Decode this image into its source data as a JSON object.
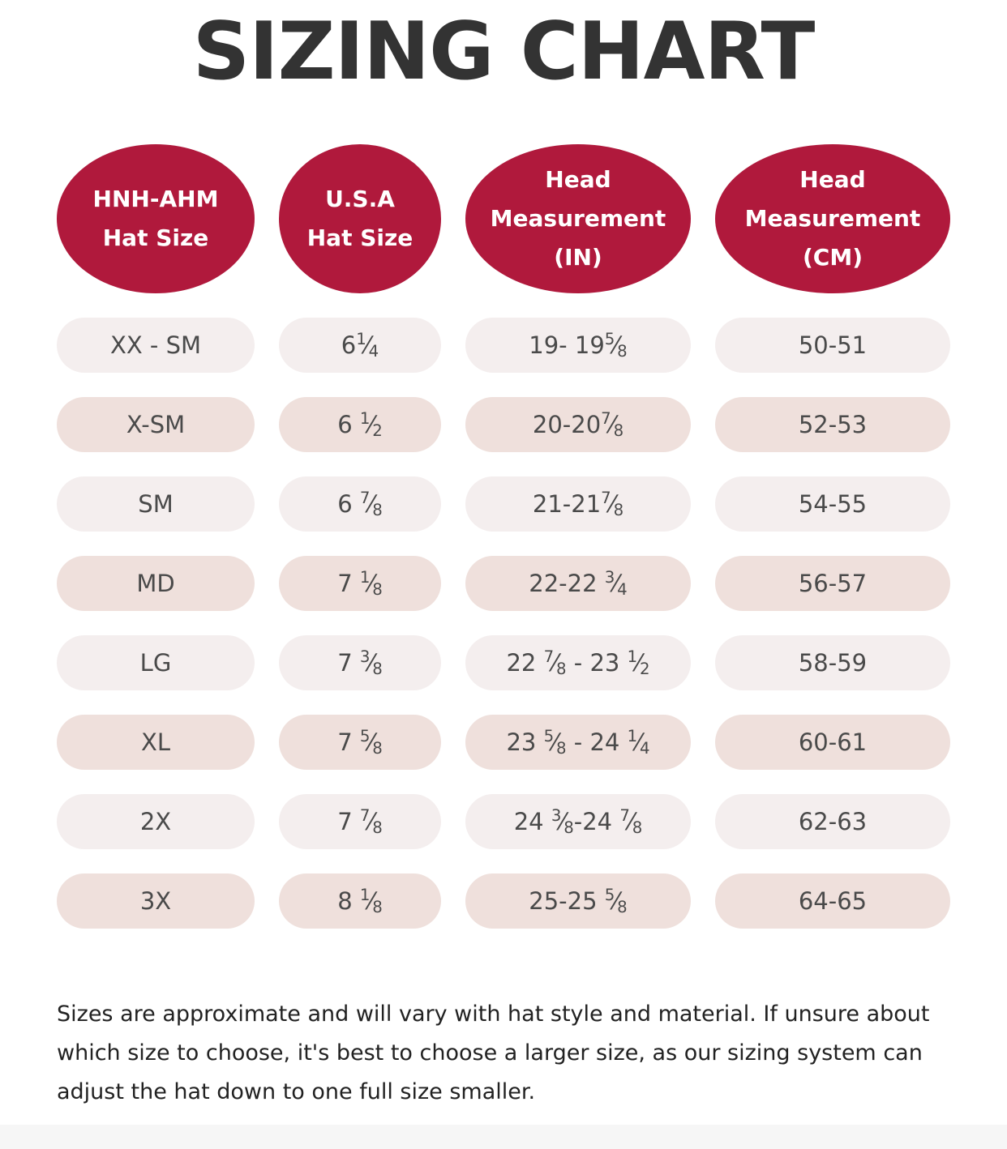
{
  "title": "SIZING CHART",
  "headers": [
    {
      "lines": [
        "HNH-AHM",
        "Hat Size"
      ]
    },
    {
      "lines": [
        "U.S.A",
        "Hat Size"
      ]
    },
    {
      "lines": [
        "Head",
        "Measurement",
        "(IN)"
      ]
    },
    {
      "lines": [
        "Head",
        "Measurement",
        "(CM)"
      ]
    }
  ],
  "rows": [
    {
      "hnh": "XX - SM",
      "usa": [
        {
          "t": "6"
        },
        {
          "f": [
            "1",
            "4"
          ]
        }
      ],
      "inch": [
        {
          "t": "19- 19"
        },
        {
          "f": [
            "5",
            "8"
          ]
        }
      ],
      "cm": "50-51"
    },
    {
      "hnh": "X-SM",
      "usa": [
        {
          "t": "6 "
        },
        {
          "f": [
            "1",
            "2"
          ]
        }
      ],
      "inch": [
        {
          "t": "20-20"
        },
        {
          "f": [
            "7",
            "8"
          ]
        }
      ],
      "cm": "52-53"
    },
    {
      "hnh": "SM",
      "usa": [
        {
          "t": "6 "
        },
        {
          "f": [
            "7",
            "8"
          ]
        }
      ],
      "inch": [
        {
          "t": "21-21"
        },
        {
          "f": [
            "7",
            "8"
          ]
        }
      ],
      "cm": "54-55"
    },
    {
      "hnh": "MD",
      "usa": [
        {
          "t": "7 "
        },
        {
          "f": [
            "1",
            "8"
          ]
        }
      ],
      "inch": [
        {
          "t": "22-22 "
        },
        {
          "f": [
            "3",
            "4"
          ]
        }
      ],
      "cm": "56-57"
    },
    {
      "hnh": "LG",
      "usa": [
        {
          "t": "7 "
        },
        {
          "f": [
            "3",
            "8"
          ]
        }
      ],
      "inch": [
        {
          "t": "22 "
        },
        {
          "f": [
            "7",
            "8"
          ]
        },
        {
          "t": " - 23 "
        },
        {
          "f": [
            "1",
            "2"
          ]
        }
      ],
      "cm": "58-59"
    },
    {
      "hnh": "XL",
      "usa": [
        {
          "t": "7 "
        },
        {
          "f": [
            "5",
            "8"
          ]
        }
      ],
      "inch": [
        {
          "t": "23 "
        },
        {
          "f": [
            "5",
            "8"
          ]
        },
        {
          "t": " - 24 "
        },
        {
          "f": [
            "1",
            "4"
          ]
        }
      ],
      "cm": "60-61"
    },
    {
      "hnh": "2X",
      "usa": [
        {
          "t": "7 "
        },
        {
          "f": [
            "7",
            "8"
          ]
        }
      ],
      "inch": [
        {
          "t": "24 "
        },
        {
          "f": [
            "3",
            "8"
          ]
        },
        {
          "t": "-24 "
        },
        {
          "f": [
            "7",
            "8"
          ]
        }
      ],
      "cm": "62-63"
    },
    {
      "hnh": "3X",
      "usa": [
        {
          "t": "8 "
        },
        {
          "f": [
            "1",
            "8"
          ]
        }
      ],
      "inch": [
        {
          "t": "25-25 "
        },
        {
          "f": [
            "5",
            "8"
          ]
        }
      ],
      "cm": "64-65"
    }
  ],
  "note": "Sizes are approximate and will vary with hat style and material. If unsure about which size to choose, it's best to choose a larger size, as our sizing system can adjust the hat down to one full size smaller.",
  "colors": {
    "header_bg": "#b0193c",
    "row_light": "#f4eeee",
    "row_dark": "#efe0dc"
  }
}
